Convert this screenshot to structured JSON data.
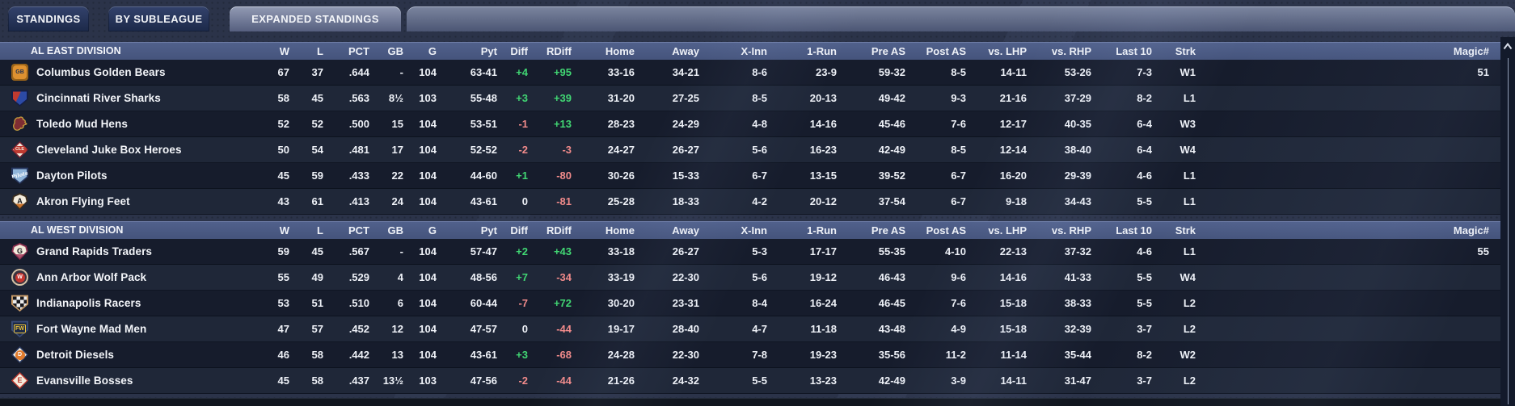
{
  "tabs": [
    {
      "label": "STANDINGS",
      "active": false
    },
    {
      "label": "BY SUBLEAGUE",
      "active": false
    },
    {
      "label": "EXPANDED STANDINGS",
      "active": true
    }
  ],
  "columns": [
    "W",
    "L",
    "PCT",
    "GB",
    "G",
    "Pyt",
    "Diff",
    "RDiff",
    "Home",
    "Away",
    "X-Inn",
    "1-Run",
    "Pre AS",
    "Post AS",
    "vs. LHP",
    "vs. RHP",
    "Last 10",
    "Strk",
    "Magic#"
  ],
  "colors": {
    "pos": "#41d673",
    "neg": "#f08a8a",
    "header_bg": "#4a597e",
    "row_dark": "#161c2c",
    "row_light": "#1f2738"
  },
  "icons": {
    "scrollbar_arrow": "chevron-up-icon"
  },
  "chart_data": {
    "type": "table",
    "title": "Expanded Standings",
    "note": "two division tables share identical column headers"
  },
  "divisions": [
    {
      "name": "AL EAST DIVISION",
      "teams": [
        {
          "name": "Columbus Golden Bears",
          "logo": {
            "shape": "square",
            "bg": "#de9130",
            "border": "#9a641a",
            "text": "GB",
            "text_color": "#203052",
            "text_style": "small"
          },
          "stats": [
            "67",
            "37",
            ".644",
            "-",
            "104",
            "63-41",
            "+4",
            "+95",
            "33-16",
            "34-21",
            "8-6",
            "23-9",
            "59-32",
            "8-5",
            "14-11",
            "53-26",
            "7-3",
            "W1",
            "51"
          ]
        },
        {
          "name": "Cincinnati River Sharks",
          "logo": {
            "shape": "shield",
            "bg": "linear-gradient(115deg,#bf3a30 40%,#2c4aa6 40%)",
            "border": "#141e45",
            "text": ""
          },
          "stats": [
            "58",
            "45",
            ".563",
            "8½",
            "103",
            "55-48",
            "+3",
            "+39",
            "31-20",
            "27-25",
            "8-5",
            "20-13",
            "49-42",
            "9-3",
            "21-16",
            "37-29",
            "8-2",
            "L1",
            ""
          ]
        },
        {
          "name": "Toledo Mud Hens",
          "logo": {
            "shape": "bird",
            "bg": "#7e2d33",
            "border": "#c9a23e",
            "text": ""
          },
          "stats": [
            "52",
            "52",
            ".500",
            "15",
            "104",
            "53-51",
            "-1",
            "+13",
            "28-23",
            "24-29",
            "4-8",
            "14-16",
            "45-46",
            "7-6",
            "12-17",
            "40-35",
            "6-4",
            "W3",
            ""
          ]
        },
        {
          "name": "Cleveland Juke Box Heroes",
          "logo": {
            "shape": "diamond",
            "bg": "#f1eadc",
            "border": "#7c2030",
            "text": "CLE",
            "text_color": "#f1eadc",
            "text_style": "tiny",
            "text_bg": "#bf3a30",
            "text_bg_style": "oval"
          },
          "stats": [
            "50",
            "54",
            ".481",
            "17",
            "104",
            "52-52",
            "-2",
            "-3",
            "24-27",
            "26-27",
            "5-6",
            "16-23",
            "42-49",
            "8-5",
            "12-14",
            "38-40",
            "6-4",
            "W4",
            ""
          ]
        },
        {
          "name": "Dayton Pilots",
          "logo": {
            "shape": "shield",
            "bg": "#8fb4d9",
            "border": "#27375f",
            "text": "Pilots",
            "text_color": "#ffffff",
            "text_style": "script"
          },
          "stats": [
            "45",
            "59",
            ".433",
            "22",
            "104",
            "44-60",
            "+1",
            "-80",
            "30-26",
            "15-33",
            "6-7",
            "13-15",
            "39-52",
            "6-7",
            "16-20",
            "29-39",
            "4-6",
            "L1",
            ""
          ]
        },
        {
          "name": "Akron Flying Feet",
          "logo": {
            "shape": "pin",
            "bg": "linear-gradient(#f3ecdd 68%, #c9732c 68%)",
            "border": "#3c2e1e",
            "text": "A",
            "text_color": "#15151a"
          },
          "stats": [
            "43",
            "61",
            ".413",
            "24",
            "104",
            "43-61",
            "0",
            "-81",
            "25-28",
            "18-33",
            "4-2",
            "20-12",
            "37-54",
            "6-7",
            "9-18",
            "34-43",
            "5-5",
            "L1",
            ""
          ]
        }
      ]
    },
    {
      "name": "AL WEST DIVISION",
      "teams": [
        {
          "name": "Grand Rapids Traders",
          "logo": {
            "shape": "pin",
            "bg": "linear-gradient(#f3ecdd 72%, #b0556f 72%)",
            "border": "#8e3050",
            "text": "G",
            "text_color": "#15151a"
          },
          "stats": [
            "59",
            "45",
            ".567",
            "-",
            "104",
            "57-47",
            "+2",
            "+43",
            "33-18",
            "26-27",
            "5-3",
            "17-17",
            "55-35",
            "4-10",
            "22-13",
            "37-32",
            "4-6",
            "L1",
            "55"
          ]
        },
        {
          "name": "Ann Arbor Wolf Pack",
          "logo": {
            "shape": "circle",
            "bg": "#3a3440",
            "border": "#d6c3a6",
            "text": "W",
            "text_color": "#ffffff",
            "text_style": "small",
            "text_bg": "#c5362f"
          },
          "stats": [
            "55",
            "49",
            ".529",
            "4",
            "104",
            "48-56",
            "+7",
            "-34",
            "33-19",
            "22-30",
            "5-6",
            "19-12",
            "46-43",
            "9-6",
            "14-16",
            "41-33",
            "5-5",
            "W4",
            ""
          ]
        },
        {
          "name": "Indianapolis Racers",
          "logo": {
            "shape": "shield",
            "bg": "repeating-conic-gradient(#ececec 0% 25%, #17171c 25% 50%)",
            "bg_size": "9px 9px",
            "border": "#c79a66",
            "text": ""
          },
          "stats": [
            "53",
            "51",
            ".510",
            "6",
            "104",
            "60-44",
            "-7",
            "+72",
            "30-20",
            "23-31",
            "8-4",
            "16-24",
            "46-45",
            "7-6",
            "15-18",
            "38-33",
            "5-5",
            "L2",
            ""
          ]
        },
        {
          "name": "Fort Wayne Mad Men",
          "logo": {
            "shape": "shield",
            "bg": "#1c2946",
            "border": "#3a4c77",
            "text": "FW",
            "text_color": "#f0c53a",
            "text_style": "boxed"
          },
          "stats": [
            "47",
            "57",
            ".452",
            "12",
            "104",
            "47-57",
            "0",
            "-44",
            "19-17",
            "28-40",
            "4-7",
            "11-18",
            "43-48",
            "4-9",
            "15-18",
            "32-39",
            "3-7",
            "L2",
            ""
          ]
        },
        {
          "name": "Detroit Diesels",
          "logo": {
            "shape": "diamond",
            "bg": "#f3ecdd",
            "border": "#2a3a63",
            "text": "D",
            "text_color": "#ffffff",
            "text_style": "small",
            "text_bg": "#e07b2e"
          },
          "stats": [
            "46",
            "58",
            ".442",
            "13",
            "104",
            "43-61",
            "+3",
            "-68",
            "24-28",
            "22-30",
            "7-8",
            "19-23",
            "35-56",
            "11-2",
            "11-14",
            "35-44",
            "8-2",
            "W2",
            ""
          ]
        },
        {
          "name": "Evansville Bosses",
          "logo": {
            "shape": "diamond",
            "bg": "#f3ecdd",
            "border": "#bf3a30",
            "text": "E",
            "text_color": "#bf3a30"
          },
          "stats": [
            "45",
            "58",
            ".437",
            "13½",
            "103",
            "47-56",
            "-2",
            "-44",
            "21-26",
            "24-32",
            "5-5",
            "13-23",
            "42-49",
            "3-9",
            "14-11",
            "31-47",
            "3-7",
            "L2",
            ""
          ]
        }
      ]
    }
  ]
}
